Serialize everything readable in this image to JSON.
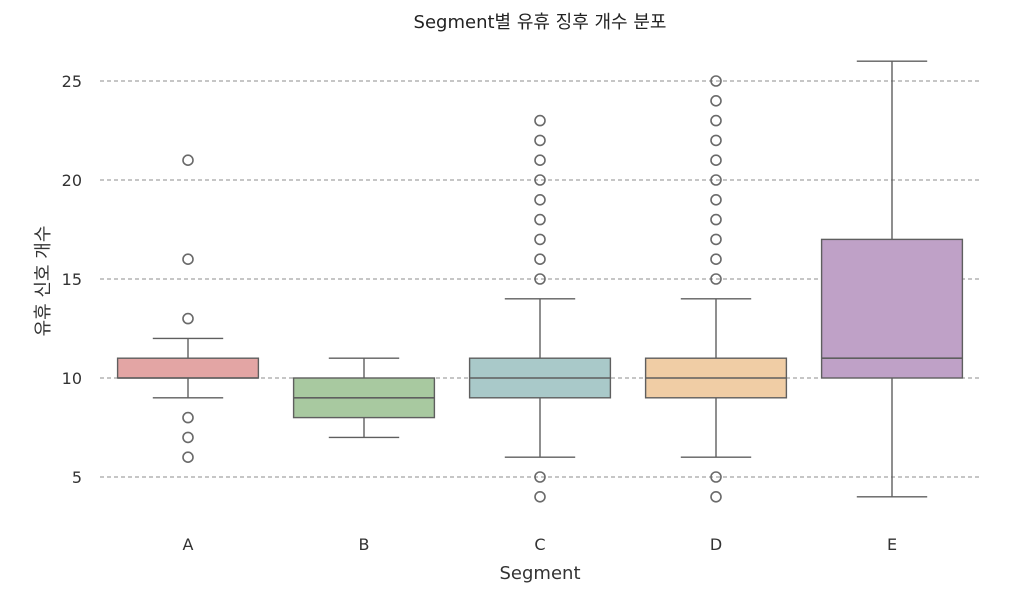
{
  "chart_data": {
    "type": "box",
    "title": "Segment별 유휴 징후 개수 분포",
    "xlabel": "Segment",
    "ylabel": "유휴 신호 개수",
    "ylim": [
      2.3,
      27.2
    ],
    "yticks": [
      5,
      10,
      15,
      20,
      25
    ],
    "grid": "y-dashed",
    "categories": [
      "A",
      "B",
      "C",
      "D",
      "E"
    ],
    "boxes": [
      {
        "category": "A",
        "color": "#e3a5a4",
        "whisker_low": 9,
        "q1": 10,
        "median": 10,
        "q3": 11,
        "whisker_high": 12,
        "outliers": [
          21,
          16,
          13,
          8,
          7,
          6
        ]
      },
      {
        "category": "B",
        "color": "#a8c9a0",
        "whisker_low": 7,
        "q1": 8,
        "median": 9,
        "q3": 10,
        "whisker_high": 11,
        "outliers": []
      },
      {
        "category": "C",
        "color": "#a9c9c9",
        "whisker_low": 6,
        "q1": 9,
        "median": 10,
        "q3": 11,
        "whisker_high": 14,
        "outliers": [
          23,
          22,
          21,
          20,
          19,
          18,
          17,
          16,
          15,
          5,
          4
        ]
      },
      {
        "category": "D",
        "color": "#f0cda5",
        "whisker_low": 6,
        "q1": 9,
        "median": 10,
        "q3": 11,
        "whisker_high": 14,
        "outliers": [
          25,
          24,
          23,
          22,
          21,
          20,
          19,
          18,
          17,
          16,
          15,
          5,
          4
        ]
      },
      {
        "category": "E",
        "color": "#bfa1c7",
        "whisker_low": 4,
        "q1": 10,
        "median": 11,
        "q3": 17,
        "whisker_high": 26,
        "outliers": []
      }
    ]
  }
}
